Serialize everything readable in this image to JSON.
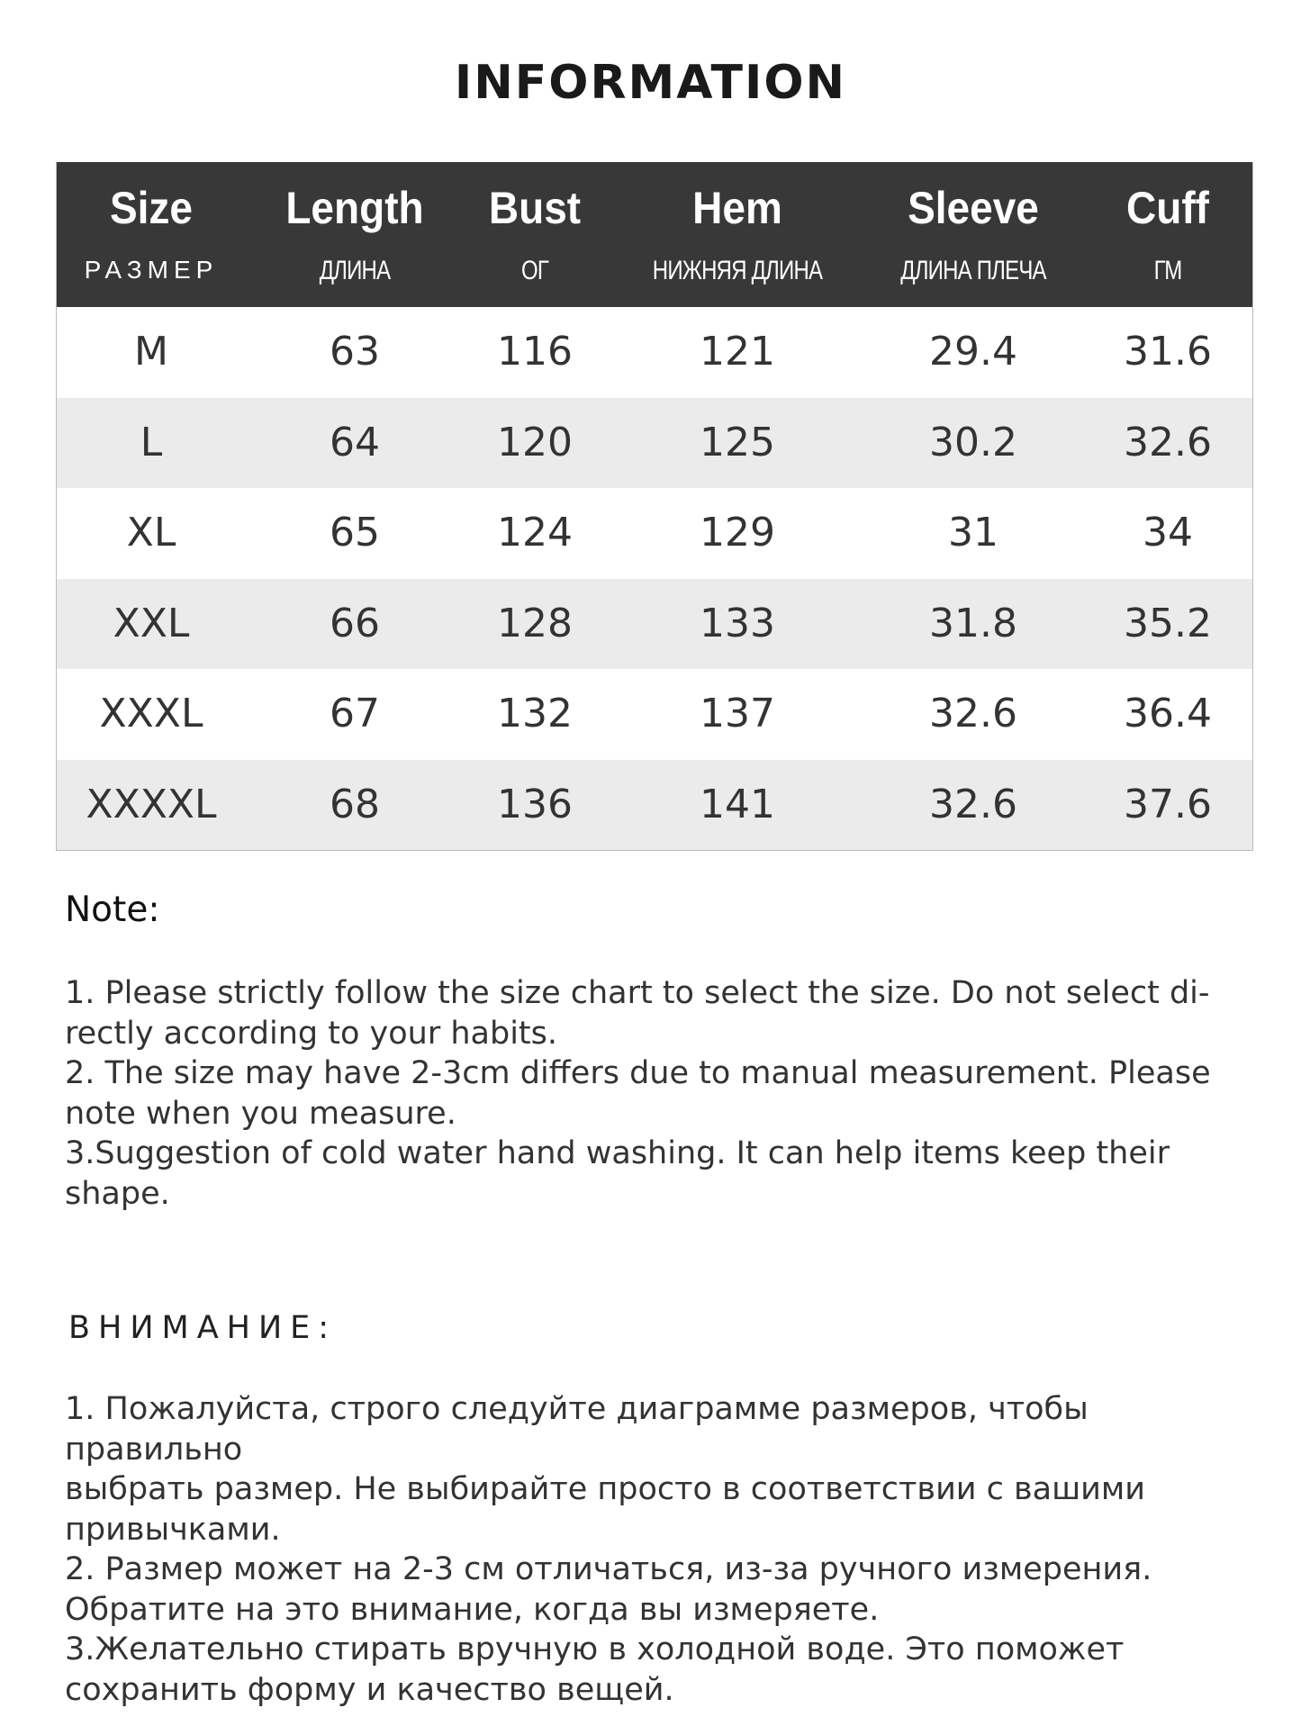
{
  "title": "INFORMATION",
  "table": {
    "headers": [
      {
        "en": "Size",
        "ru": "РАЗМЕР"
      },
      {
        "en": "Length",
        "ru": "ДЛИНА"
      },
      {
        "en": "Bust",
        "ru": "ОГ"
      },
      {
        "en": "Hem",
        "ru": "НИЖНЯЯ ДЛИНА"
      },
      {
        "en": "Sleeve",
        "ru": "ДЛИНА ПЛЕЧА"
      },
      {
        "en": "Cuff",
        "ru": "ГМ"
      }
    ],
    "rows": [
      [
        "M",
        "63",
        "116",
        "121",
        "29.4",
        "31.6"
      ],
      [
        "L",
        "64",
        "120",
        "125",
        "30.2",
        "32.6"
      ],
      [
        "XL",
        "65",
        "124",
        "129",
        "31",
        "34"
      ],
      [
        "XXL",
        "66",
        "128",
        "133",
        "31.8",
        "35.2"
      ],
      [
        "XXXL",
        "67",
        "132",
        "137",
        "32.6",
        "36.4"
      ],
      [
        "XXXXL",
        "68",
        "136",
        "141",
        "32.6",
        "37.6"
      ]
    ]
  },
  "note": {
    "heading": "Note:",
    "text": "1. Please strictly follow the size chart  to select the size. Do not select di-\nrectly according to your habits.\n2. The size may have 2-3cm differs due to manual measurement. Please\nnote when you measure.\n3.Suggestion of cold water hand washing. It can help items keep their\nshape."
  },
  "note_ru": {
    "heading": "ВНИМАНИЕ:",
    "text": "1. Пожалуйста, строго следуйте диаграмме размеров, чтобы правильно\nвыбрать размер. Не выбирайте просто в соответствии с вашими\nпривычками.\n2. Размер может на 2-3 см отличаться, из-за ручного измерения.\nОбратите на это внимание, когда вы измеряете.\n3.Желательно стирать вручную в холодной воде. Это поможет\nсохранить форму и качество вещей."
  }
}
